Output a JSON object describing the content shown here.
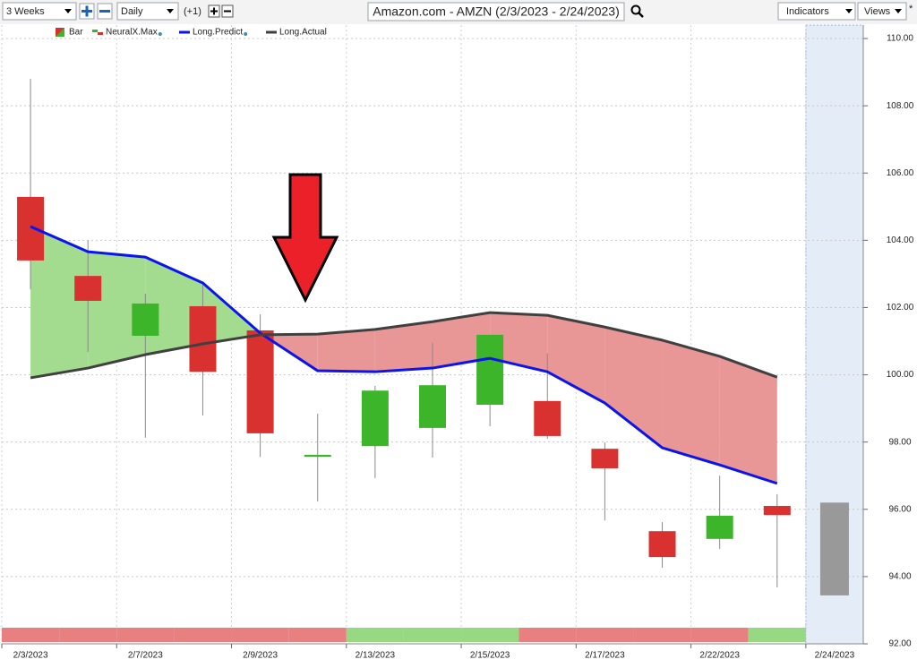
{
  "toolbar": {
    "range": "3 Weeks",
    "interval": "Daily",
    "offset": "(+1)",
    "indicators": "Indicators",
    "views": "Views",
    "star": "*"
  },
  "chart_data": {
    "type": "candlestick",
    "title": "Amazon.com - AMZN (2/3/2023 - 2/24/2023)",
    "categories": [
      "2/3/2023",
      null,
      "2/7/2023",
      null,
      "2/9/2023",
      null,
      "2/13/2023",
      null,
      "2/15/2023",
      null,
      "2/17/2023",
      null,
      "2/22/2023",
      null,
      "2/24/2023"
    ],
    "open": [
      105.29,
      102.94,
      101.16,
      102.04,
      101.32,
      97.56,
      97.88,
      98.42,
      99.11,
      99.22,
      97.8,
      95.35,
      95.12,
      96.1,
      null
    ],
    "close": [
      103.4,
      102.2,
      102.12,
      100.09,
      98.26,
      97.62,
      99.53,
      99.69,
      101.19,
      98.18,
      97.22,
      94.58,
      95.81,
      95.83,
      null
    ],
    "high": [
      108.8,
      104.0,
      102.41,
      102.68,
      101.8,
      98.84,
      99.67,
      100.95,
      101.19,
      100.63,
      97.99,
      95.62,
      97.0,
      96.45,
      null
    ],
    "low": [
      102.54,
      100.68,
      98.13,
      98.79,
      97.56,
      96.23,
      96.93,
      97.54,
      98.47,
      98.1,
      95.67,
      94.26,
      94.82,
      93.68,
      null
    ],
    "up_color": "#3cb52a",
    "down_color": "#d93030",
    "forecast": {
      "low": 93.44,
      "high": 96.2,
      "color": "#999999",
      "band_color": "#e3ecf7"
    },
    "bar_name": "Bar",
    "signal_name": "NeuralX.Max",
    "signal_colors": [
      "#e88080",
      "#e88080",
      "#e88080",
      "#e88080",
      "#e88080",
      "#e88080",
      "#96d982",
      "#96d982",
      "#96d982",
      "#e88080",
      "#e88080",
      "#e88080",
      "#e88080",
      "#96d982",
      null
    ],
    "fill_up_color": "#a3dc8f",
    "fill_down_color": "#e89696",
    "series": [
      {
        "name": "Long.Predict",
        "color": "#0a14f0",
        "values": [
          104.41,
          103.66,
          103.5,
          102.73,
          101.24,
          100.12,
          100.09,
          100.2,
          100.49,
          100.09,
          99.16,
          97.83,
          97.32,
          96.77,
          null
        ]
      },
      {
        "name": "Long.Actual",
        "color": "#404040",
        "values": [
          99.91,
          100.2,
          100.6,
          100.92,
          101.19,
          101.21,
          101.35,
          101.58,
          101.85,
          101.77,
          101.42,
          101.03,
          100.55,
          99.93,
          null
        ]
      }
    ],
    "ylim": [
      92,
      110.4
    ],
    "yticks": [
      {
        "value": 92,
        "label": "92.00"
      },
      {
        "value": 94,
        "label": "94.00"
      },
      {
        "value": 96,
        "label": "96.00"
      },
      {
        "value": 98,
        "label": "98.00"
      },
      {
        "value": 100,
        "label": "100.00"
      },
      {
        "value": 102,
        "label": "102.00"
      },
      {
        "value": 104,
        "label": "104.00"
      },
      {
        "value": 106,
        "label": "106.00"
      },
      {
        "value": 108,
        "label": "108.00"
      },
      {
        "value": 110,
        "label": "110.00"
      }
    ],
    "grid": true
  }
}
